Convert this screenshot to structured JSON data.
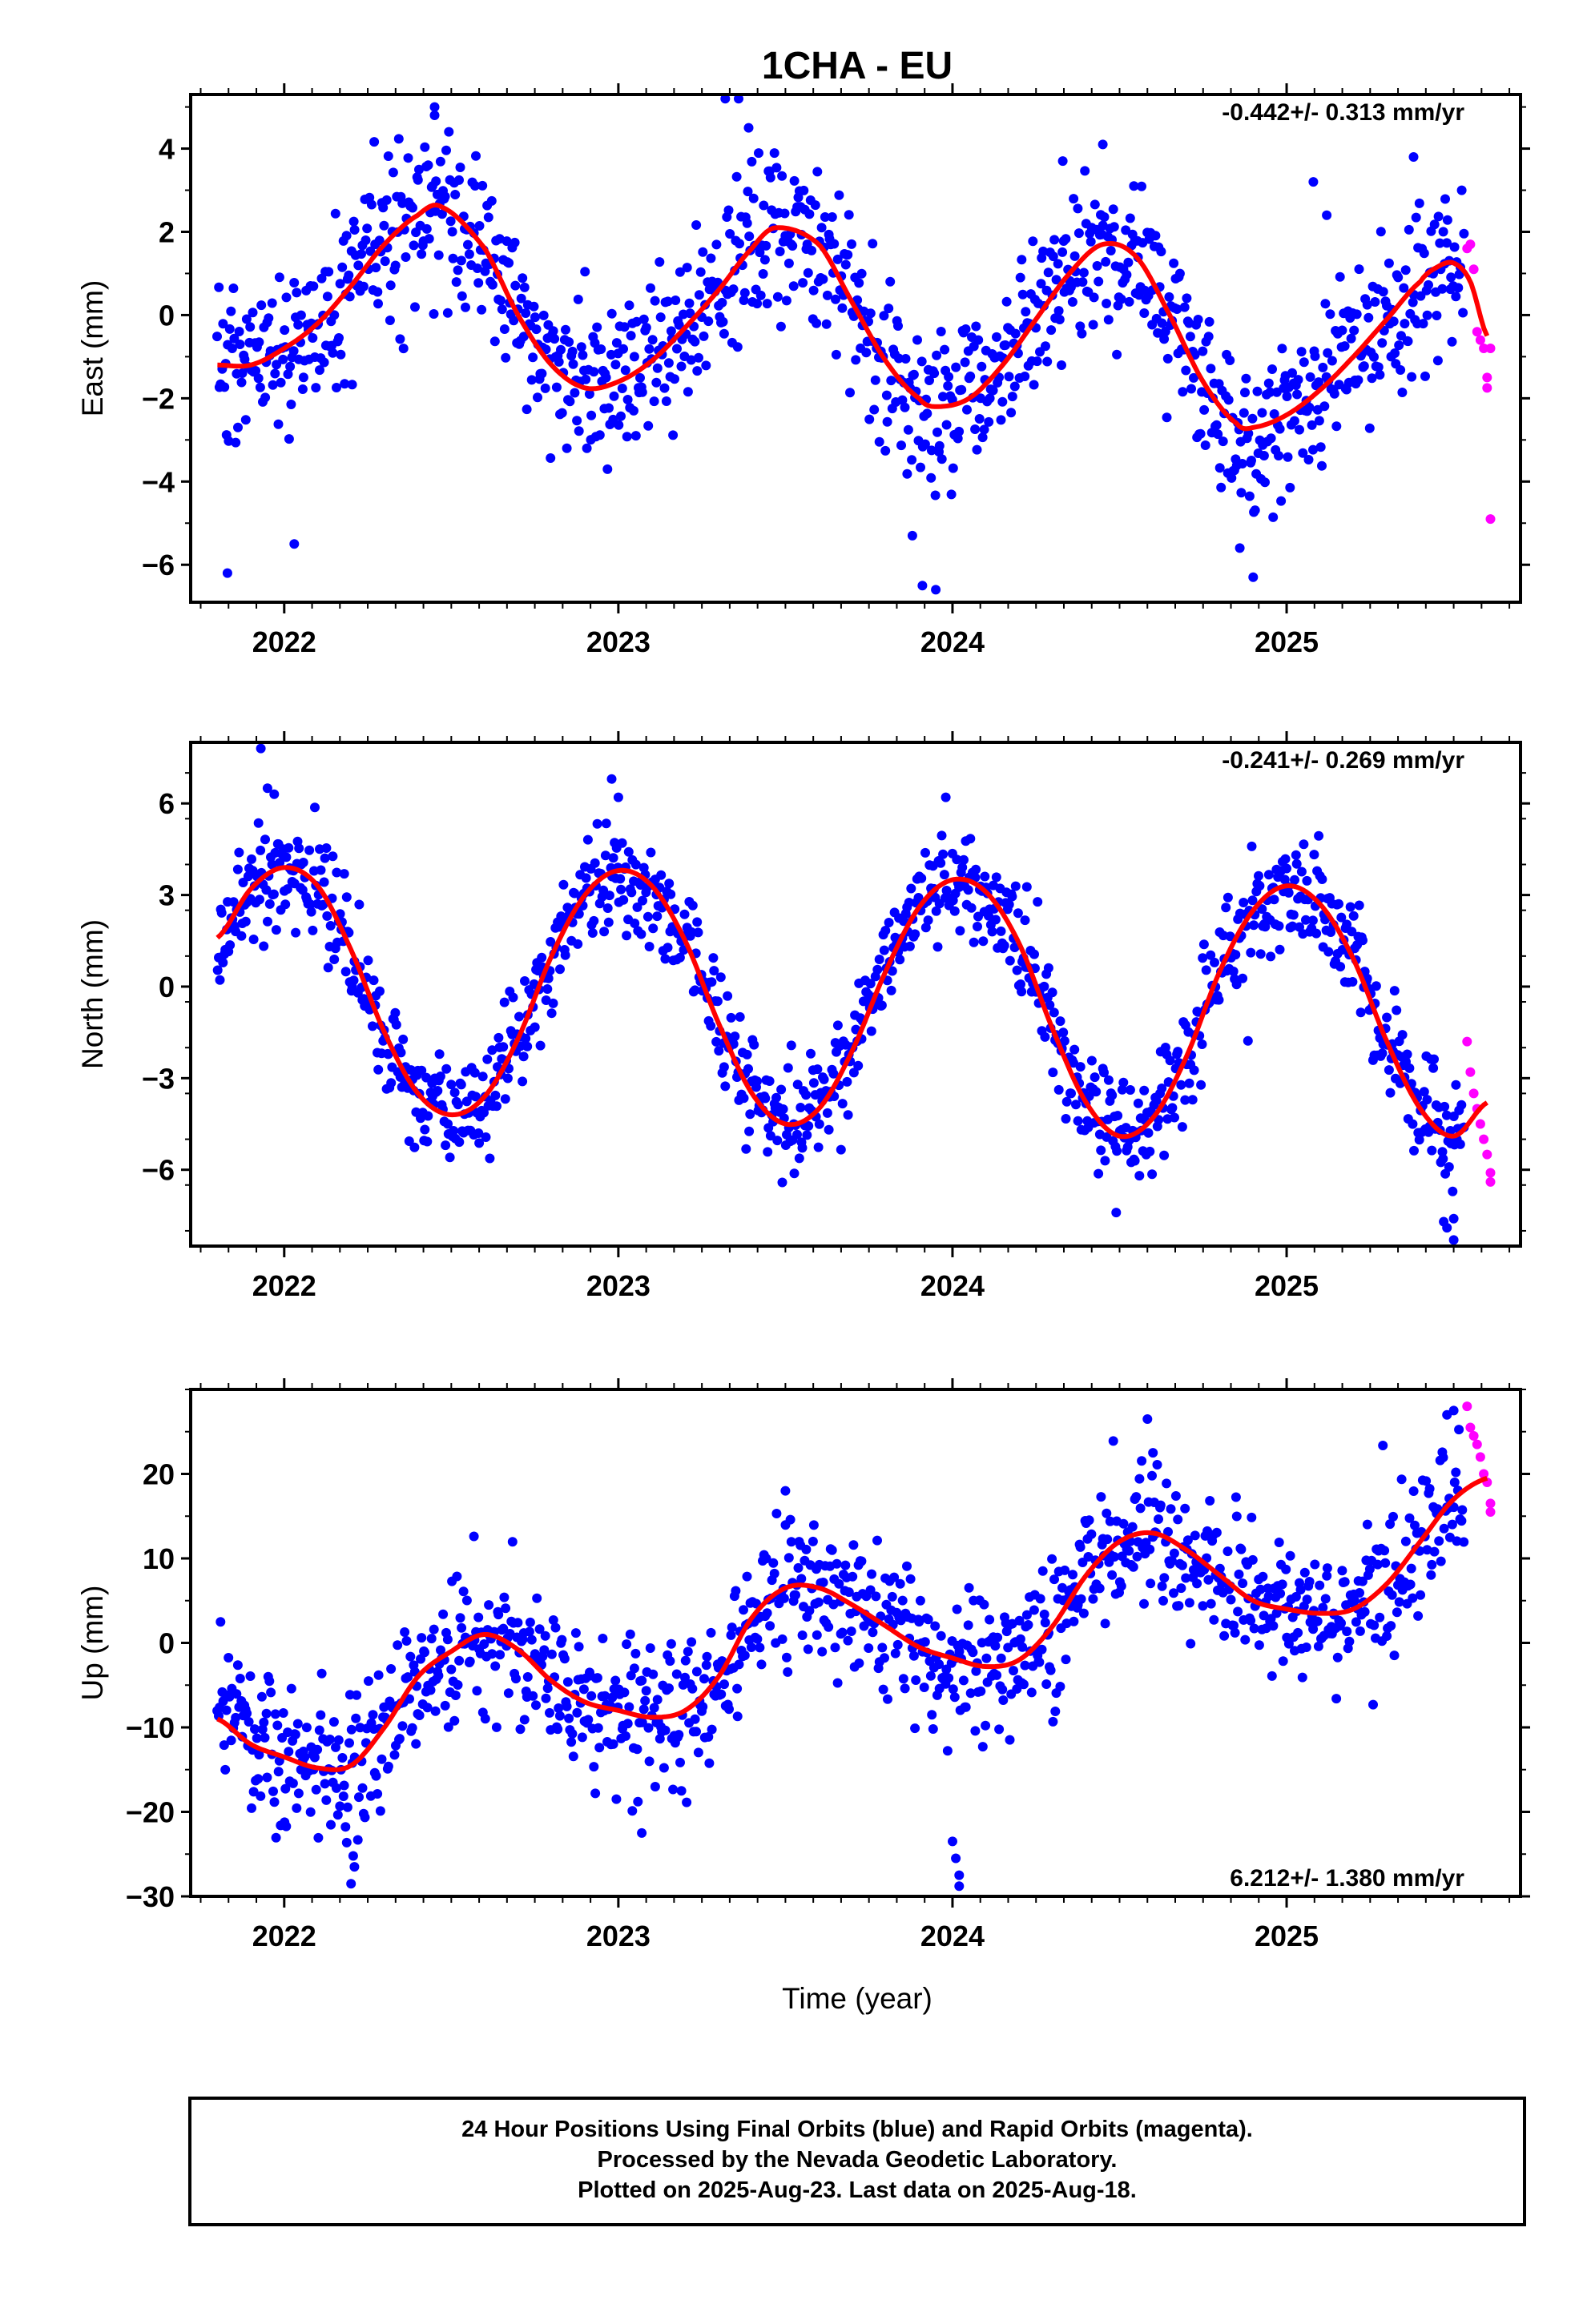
{
  "title": "1CHA - EU",
  "xlabel": "Time (year)",
  "footer": {
    "line1": "24 Hour Positions Using Final Orbits (blue) and Rapid Orbits (magenta).",
    "line2": "Processed by the Nevada Geodetic Laboratory.",
    "line3": "Plotted on 2025-Aug-23. Last data on 2025-Aug-18."
  },
  "colors": {
    "final": "#0000ff",
    "rapid": "#ff00ff",
    "model": "#ff0000",
    "axis": "#000000"
  },
  "chart_data": [
    {
      "type": "scatter",
      "component": "east",
      "ylabel": "East (mm)",
      "rate_label": "-0.442+/- 0.313 mm/yr",
      "xlim": [
        2021.72,
        2025.7
      ],
      "ylim": [
        -6.9,
        5.3
      ],
      "yticks": [
        4,
        2,
        0,
        -2,
        -4,
        -6
      ],
      "xticks": [
        2022,
        2023,
        2024,
        2025
      ],
      "grid": false,
      "model": {
        "x": [
          2021.8,
          2021.9,
          2022.0,
          2022.1,
          2022.2,
          2022.3,
          2022.4,
          2022.47,
          2022.6,
          2022.7,
          2022.8,
          2022.9,
          2023.0,
          2023.1,
          2023.2,
          2023.3,
          2023.4,
          2023.47,
          2023.6,
          2023.7,
          2023.8,
          2023.9,
          2023.95,
          2024.05,
          2024.15,
          2024.25,
          2024.35,
          2024.45,
          2024.55,
          2024.65,
          2024.75,
          2024.85,
          2024.9,
          2025.0,
          2025.1,
          2025.2,
          2025.3,
          2025.4,
          2025.45,
          2025.5,
          2025.55,
          2025.6
        ],
        "y": [
          -1.2,
          -1.2,
          -0.8,
          -0.2,
          0.7,
          1.7,
          2.4,
          2.6,
          1.6,
          0.0,
          -1.2,
          -1.75,
          -1.6,
          -1.1,
          -0.3,
          0.6,
          1.6,
          2.1,
          1.7,
          0.3,
          -1.1,
          -2.0,
          -2.2,
          -2.0,
          -1.2,
          -0.1,
          1.0,
          1.7,
          1.4,
          0.0,
          -1.6,
          -2.6,
          -2.7,
          -2.4,
          -1.8,
          -1.0,
          -0.1,
          0.8,
          1.15,
          1.25,
          0.8,
          -0.5
        ]
      },
      "anchors": {
        "x": [
          2021.8,
          2021.9,
          2022.0,
          2022.1,
          2022.2,
          2022.3,
          2022.4,
          2022.47,
          2022.6,
          2022.7,
          2022.8,
          2022.9,
          2023.0,
          2023.1,
          2023.2,
          2023.3,
          2023.4,
          2023.47,
          2023.6,
          2023.7,
          2023.8,
          2023.9,
          2023.95,
          2024.05,
          2024.15,
          2024.25,
          2024.35,
          2024.45,
          2024.55,
          2024.65,
          2024.75,
          2024.85,
          2024.9,
          2025.0,
          2025.1,
          2025.2,
          2025.3,
          2025.4,
          2025.45,
          2025.5,
          2025.55,
          2025.6
        ],
        "y": [
          -1.2,
          -1.2,
          -0.8,
          -0.2,
          0.7,
          1.7,
          2.4,
          2.6,
          1.6,
          0.0,
          -1.2,
          -1.75,
          -1.6,
          -1.1,
          -0.3,
          0.6,
          1.6,
          2.1,
          1.7,
          0.3,
          -1.1,
          -2.0,
          -2.2,
          -2.0,
          -1.2,
          -0.1,
          1.0,
          1.7,
          1.4,
          0.0,
          -1.6,
          -2.6,
          -2.7,
          -2.4,
          -1.8,
          -1.0,
          -0.1,
          0.8,
          1.15,
          1.25,
          0.8,
          -0.5
        ]
      },
      "final_span": [
        2021.8,
        2025.53
      ],
      "final_count": 1100,
      "final_scatter": 1.0,
      "outliers": {
        "x": [
          2021.83,
          2022.03,
          2022.45,
          2022.45,
          2023.32,
          2023.36,
          2023.39,
          2023.88,
          2023.91,
          2023.95,
          2024.33,
          2024.45,
          2024.86,
          2024.9,
          2025.08,
          2025.12,
          2025.38
        ],
        "y": [
          -6.2,
          -5.5,
          5.0,
          4.8,
          5.2,
          5.2,
          4.5,
          -5.3,
          -6.5,
          -6.6,
          3.7,
          4.1,
          -5.6,
          -6.3,
          3.2,
          2.4,
          3.8
        ]
      },
      "rapid": {
        "x": [
          2025.54,
          2025.55,
          2025.56,
          2025.57,
          2025.58,
          2025.59,
          2025.6,
          2025.6,
          2025.61,
          2025.61
        ],
        "y": [
          1.6,
          1.7,
          1.1,
          -0.4,
          -0.6,
          -0.8,
          -1.5,
          -1.75,
          -0.8,
          -4.9
        ]
      }
    },
    {
      "type": "scatter",
      "component": "north",
      "ylabel": "North (mm)",
      "rate_label": "-0.241+/- 0.269 mm/yr",
      "xlim": [
        2021.72,
        2025.7
      ],
      "ylim": [
        -8.5,
        8.0
      ],
      "yticks": [
        6,
        3,
        0,
        -3,
        -6
      ],
      "xticks": [
        2022,
        2023,
        2024,
        2025
      ],
      "grid": false,
      "model": {
        "x": [
          2021.8,
          2021.9,
          2022.0,
          2022.1,
          2022.2,
          2022.3,
          2022.4,
          2022.5,
          2022.6,
          2022.7,
          2022.8,
          2022.9,
          2023.0,
          2023.1,
          2023.2,
          2023.3,
          2023.4,
          2023.5,
          2023.6,
          2023.7,
          2023.8,
          2023.9,
          2024.0,
          2024.1,
          2024.2,
          2024.3,
          2024.4,
          2024.5,
          2024.6,
          2024.7,
          2024.8,
          2024.9,
          2025.0,
          2025.1,
          2025.2,
          2025.3,
          2025.4,
          2025.5,
          2025.6
        ],
        "y": [
          1.6,
          3.2,
          3.9,
          3.3,
          1.2,
          -1.5,
          -3.5,
          -4.2,
          -3.6,
          -1.7,
          1.0,
          3.0,
          3.8,
          3.3,
          1.5,
          -1.2,
          -3.5,
          -4.5,
          -4.0,
          -2.1,
          0.5,
          2.6,
          3.5,
          3.1,
          1.4,
          -1.4,
          -3.8,
          -4.9,
          -4.3,
          -2.3,
          0.5,
          2.5,
          3.3,
          2.7,
          0.9,
          -1.8,
          -4.0,
          -4.9,
          -3.8
        ]
      },
      "anchors": {
        "x": [
          2021.8,
          2021.9,
          2022.0,
          2022.1,
          2022.2,
          2022.3,
          2022.4,
          2022.5,
          2022.6,
          2022.7,
          2022.8,
          2022.9,
          2023.0,
          2023.1,
          2023.2,
          2023.3,
          2023.4,
          2023.5,
          2023.6,
          2023.7,
          2023.8,
          2023.9,
          2024.0,
          2024.1,
          2024.2,
          2024.3,
          2024.4,
          2024.5,
          2024.6,
          2024.7,
          2024.8,
          2024.9,
          2025.0,
          2025.1,
          2025.2,
          2025.3,
          2025.4,
          2025.5,
          2025.6
        ],
        "y": [
          1.6,
          3.2,
          3.9,
          3.3,
          1.2,
          -1.5,
          -3.5,
          -4.2,
          -3.6,
          -1.7,
          1.0,
          3.0,
          3.8,
          3.3,
          1.5,
          -1.2,
          -3.5,
          -4.5,
          -4.0,
          -2.1,
          0.5,
          2.6,
          3.5,
          3.1,
          1.4,
          -1.4,
          -3.8,
          -4.9,
          -4.3,
          -2.3,
          0.5,
          2.5,
          3.3,
          2.7,
          0.9,
          -1.8,
          -4.0,
          -4.9,
          -3.8
        ]
      },
      "final_span": [
        2021.8,
        2025.53
      ],
      "final_count": 1100,
      "final_scatter": 0.9,
      "outliers": {
        "x": [
          2021.93,
          2021.95,
          2021.97,
          2022.98,
          2023.0,
          2023.98,
          2024.49,
          2025.47,
          2025.48,
          2025.5,
          2025.5
        ],
        "y": [
          7.8,
          6.5,
          6.3,
          6.8,
          6.2,
          6.2,
          -7.4,
          -7.7,
          -7.9,
          -8.3,
          -7.6
        ]
      },
      "rapid": {
        "x": [
          2025.54,
          2025.55,
          2025.56,
          2025.57,
          2025.58,
          2025.59,
          2025.6,
          2025.61,
          2025.61
        ],
        "y": [
          -1.8,
          -2.8,
          -3.5,
          -4.0,
          -4.5,
          -5.0,
          -5.5,
          -6.1,
          -6.4
        ]
      }
    },
    {
      "type": "scatter",
      "component": "up",
      "ylabel": "Up (mm)",
      "rate_label": "6.212+/- 1.380 mm/yr",
      "xlim": [
        2021.72,
        2025.7
      ],
      "ylim": [
        -30,
        30
      ],
      "yticks": [
        20,
        10,
        0,
        -10,
        -20,
        -30
      ],
      "xticks": [
        2022,
        2023,
        2024,
        2025
      ],
      "grid": false,
      "model": {
        "x": [
          2021.8,
          2021.9,
          2022.0,
          2022.1,
          2022.2,
          2022.3,
          2022.4,
          2022.5,
          2022.6,
          2022.7,
          2022.8,
          2022.9,
          2023.0,
          2023.1,
          2023.2,
          2023.3,
          2023.4,
          2023.5,
          2023.6,
          2023.7,
          2023.8,
          2023.9,
          2024.0,
          2024.1,
          2024.2,
          2024.3,
          2024.4,
          2024.5,
          2024.6,
          2024.7,
          2024.8,
          2024.9,
          2025.0,
          2025.1,
          2025.2,
          2025.3,
          2025.4,
          2025.5,
          2025.6
        ],
        "y": [
          -9.0,
          -12.0,
          -13.5,
          -14.8,
          -14.5,
          -10.0,
          -4.0,
          -1.0,
          1.0,
          -0.8,
          -4.5,
          -7.0,
          -8.0,
          -8.8,
          -8.0,
          -4.0,
          3.0,
          6.5,
          6.5,
          4.5,
          2.0,
          -0.5,
          -1.8,
          -2.8,
          -2.0,
          2.0,
          8.0,
          12.0,
          13.0,
          11.0,
          8.0,
          5.0,
          4.0,
          3.5,
          4.0,
          7.0,
          12.0,
          17.0,
          19.5
        ]
      },
      "anchors": {
        "x": [
          2021.8,
          2021.9,
          2022.0,
          2022.1,
          2022.2,
          2022.3,
          2022.4,
          2022.5,
          2022.6,
          2022.7,
          2022.8,
          2022.9,
          2023.0,
          2023.1,
          2023.2,
          2023.3,
          2023.4,
          2023.5,
          2023.6,
          2023.7,
          2023.8,
          2023.9,
          2024.0,
          2024.1,
          2024.2,
          2024.3,
          2024.4,
          2024.5,
          2024.6,
          2024.7,
          2024.8,
          2024.9,
          2025.0,
          2025.1,
          2025.2,
          2025.3,
          2025.4,
          2025.5,
          2025.6
        ],
        "y": [
          -9.0,
          -12.0,
          -13.5,
          -14.8,
          -14.5,
          -10.0,
          -4.0,
          -1.0,
          1.0,
          -0.8,
          -4.5,
          -7.0,
          -8.0,
          -8.8,
          -8.0,
          -4.0,
          3.0,
          6.5,
          6.5,
          4.5,
          2.0,
          -0.5,
          -1.8,
          -2.8,
          -2.0,
          2.0,
          8.0,
          12.0,
          13.0,
          11.0,
          8.0,
          5.0,
          4.0,
          3.5,
          4.0,
          7.0,
          12.0,
          17.0,
          19.5
        ]
      },
      "final_span": [
        2021.8,
        2025.53
      ],
      "final_count": 1100,
      "final_scatter": 4.5,
      "outliers": {
        "x": [
          2022.2,
          2022.21,
          2024.0,
          2024.01,
          2024.02,
          2024.02,
          2023.07,
          2023.5,
          2024.6,
          2025.48,
          2025.5
        ],
        "y": [
          -28.5,
          -26.5,
          -23.5,
          -25.5,
          -27.5,
          -28.8,
          -22.5,
          18.0,
          22.5,
          27.0,
          27.5
        ]
      },
      "rapid": {
        "x": [
          2025.54,
          2025.55,
          2025.56,
          2025.57,
          2025.58,
          2025.59,
          2025.6,
          2025.61,
          2025.61
        ],
        "y": [
          28.0,
          25.5,
          24.5,
          23.5,
          22.0,
          20.0,
          19.0,
          16.5,
          15.5
        ]
      }
    }
  ]
}
